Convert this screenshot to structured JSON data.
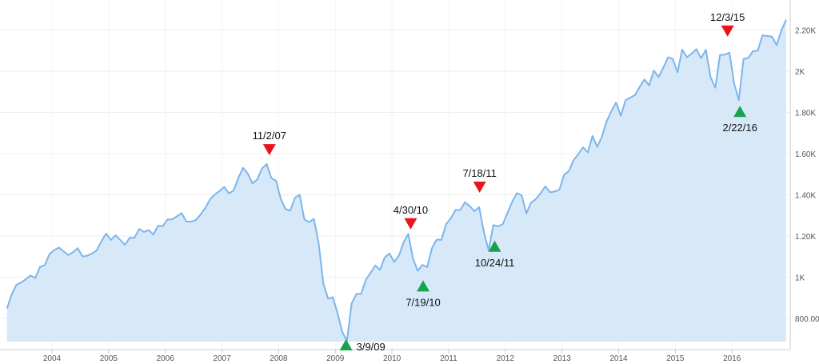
{
  "chart_data": {
    "type": "area",
    "title": "",
    "xlabel": "",
    "ylabel": "",
    "grid": true,
    "y_axis_side": "right",
    "ylim": [
      687,
      2344
    ],
    "xlim": [
      "2003-02",
      "2016-12"
    ],
    "y_ticks": [
      {
        "value": 800,
        "label": "800.00"
      },
      {
        "value": 1000,
        "label": "1K"
      },
      {
        "value": 1200,
        "label": "1.20K"
      },
      {
        "value": 1400,
        "label": "1.40K"
      },
      {
        "value": 1600,
        "label": "1.60K"
      },
      {
        "value": 1800,
        "label": "1.80K"
      },
      {
        "value": 2000,
        "label": "2K"
      },
      {
        "value": 2200,
        "label": "2.20K"
      }
    ],
    "x_ticks": [
      "2004",
      "2005",
      "2006",
      "2007",
      "2008",
      "2009",
      "2010",
      "2011",
      "2012",
      "2013",
      "2014",
      "2015",
      "2016"
    ],
    "colors": {
      "line": "#7cb5ec",
      "fill": "#d7e9f9",
      "peak": "#e8141b",
      "trough": "#16a34a",
      "grid": "#eeeeee"
    },
    "series": [
      {
        "x": [
          "2003-03",
          "2003-04",
          "2003-05",
          "2003-06",
          "2003-07",
          "2003-08",
          "2003-09",
          "2003-10",
          "2003-11",
          "2003-12",
          "2004-01",
          "2004-02",
          "2004-03",
          "2004-04",
          "2004-05",
          "2004-06",
          "2004-07",
          "2004-08",
          "2004-09",
          "2004-10",
          "2004-11",
          "2004-12",
          "2005-01",
          "2005-02",
          "2005-03",
          "2005-04",
          "2005-05",
          "2005-06",
          "2005-07",
          "2005-08",
          "2005-09",
          "2005-10",
          "2005-11",
          "2005-12",
          "2006-01",
          "2006-02",
          "2006-03",
          "2006-04",
          "2006-05",
          "2006-06",
          "2006-07",
          "2006-08",
          "2006-09",
          "2006-10",
          "2006-11",
          "2006-12",
          "2007-01",
          "2007-02",
          "2007-03",
          "2007-04",
          "2007-05",
          "2007-06",
          "2007-07",
          "2007-08",
          "2007-09",
          "2007-10",
          "2007-11",
          "2007-12",
          "2008-01",
          "2008-02",
          "2008-03",
          "2008-04",
          "2008-05",
          "2008-06",
          "2008-07",
          "2008-08",
          "2008-09",
          "2008-10",
          "2008-11",
          "2008-12",
          "2009-01",
          "2009-02",
          "2009-03",
          "2009-04",
          "2009-05",
          "2009-06",
          "2009-07",
          "2009-08",
          "2009-09",
          "2009-10",
          "2009-11",
          "2009-12",
          "2010-01",
          "2010-02",
          "2010-03",
          "2010-04",
          "2010-05",
          "2010-06",
          "2010-07",
          "2010-08",
          "2010-09",
          "2010-10",
          "2010-11",
          "2010-12",
          "2011-01",
          "2011-02",
          "2011-03",
          "2011-04",
          "2011-05",
          "2011-06",
          "2011-07",
          "2011-08",
          "2011-09",
          "2011-10",
          "2011-11",
          "2011-12",
          "2012-01",
          "2012-02",
          "2012-03",
          "2012-04",
          "2012-05",
          "2012-06",
          "2012-07",
          "2012-08",
          "2012-09",
          "2012-10",
          "2012-11",
          "2012-12",
          "2013-01",
          "2013-02",
          "2013-03",
          "2013-04",
          "2013-05",
          "2013-06",
          "2013-07",
          "2013-08",
          "2013-09",
          "2013-10",
          "2013-11",
          "2013-12",
          "2014-01",
          "2014-02",
          "2014-03",
          "2014-04",
          "2014-05",
          "2014-06",
          "2014-07",
          "2014-08",
          "2014-09",
          "2014-10",
          "2014-11",
          "2014-12",
          "2015-01",
          "2015-02",
          "2015-03",
          "2015-04",
          "2015-05",
          "2015-06",
          "2015-07",
          "2015-08",
          "2015-09",
          "2015-10",
          "2015-11",
          "2015-12",
          "2016-01",
          "2016-02",
          "2016-03",
          "2016-04",
          "2016-05",
          "2016-06",
          "2016-07",
          "2016-08",
          "2016-09",
          "2016-10",
          "2016-11",
          "2016-12"
        ],
        "values": [
          848,
          916,
          963,
          974,
          990,
          1008,
          996,
          1050,
          1058,
          1112,
          1131,
          1144,
          1126,
          1107,
          1121,
          1141,
          1101,
          1104,
          1115,
          1130,
          1174,
          1212,
          1181,
          1204,
          1181,
          1157,
          1192,
          1191,
          1234,
          1220,
          1229,
          1207,
          1249,
          1248,
          1280,
          1281,
          1295,
          1311,
          1270,
          1270,
          1277,
          1304,
          1336,
          1378,
          1401,
          1418,
          1438,
          1407,
          1421,
          1482,
          1531,
          1503,
          1455,
          1474,
          1527,
          1549,
          1481,
          1468,
          1379,
          1331,
          1323,
          1386,
          1400,
          1280,
          1267,
          1283,
          1166,
          969,
          896,
          903,
          826,
          735,
          690,
          873,
          919,
          919,
          987,
          1021,
          1057,
          1036,
          1096,
          1115,
          1074,
          1104,
          1169,
          1210,
          1089,
          1031,
          1060,
          1049,
          1141,
          1183,
          1181,
          1258,
          1286,
          1327,
          1326,
          1364,
          1345,
          1321,
          1340,
          1219,
          1131,
          1253,
          1247,
          1258,
          1312,
          1366,
          1408,
          1398,
          1310,
          1362,
          1379,
          1407,
          1441,
          1412,
          1416,
          1426,
          1498,
          1515,
          1569,
          1597,
          1631,
          1606,
          1686,
          1633,
          1682,
          1757,
          1806,
          1848,
          1783,
          1859,
          1872,
          1884,
          1924,
          1960,
          1931,
          2003,
          1972,
          2018,
          2068,
          2059,
          1995,
          2105,
          2068,
          2086,
          2107,
          2063,
          2104,
          1972,
          1920,
          2079,
          2080,
          2090,
          1940,
          1860,
          2060,
          2065,
          2097,
          2099,
          2174,
          2171,
          2168,
          2126,
          2199,
          2250
        ]
      }
    ],
    "annotations": [
      {
        "label": "11/2/07",
        "date": "2007-11-02",
        "kind": "peak",
        "label_position": "above"
      },
      {
        "label": "3/9/09",
        "date": "2009-03-09",
        "kind": "trough",
        "label_position": "right"
      },
      {
        "label": "4/30/10",
        "date": "2010-04-30",
        "kind": "peak",
        "label_position": "above"
      },
      {
        "label": "7/19/10",
        "date": "2010-07-19",
        "kind": "trough",
        "label_position": "below"
      },
      {
        "label": "7/18/11",
        "date": "2011-07-18",
        "kind": "peak",
        "label_position": "above"
      },
      {
        "label": "10/24/11",
        "date": "2011-10-24",
        "kind": "trough",
        "label_position": "below"
      },
      {
        "label": "12/3/15",
        "date": "2015-12-03",
        "kind": "peak",
        "label_position": "above"
      },
      {
        "label": "2/22/16",
        "date": "2016-02-22",
        "kind": "trough",
        "label_position": "below"
      }
    ]
  }
}
